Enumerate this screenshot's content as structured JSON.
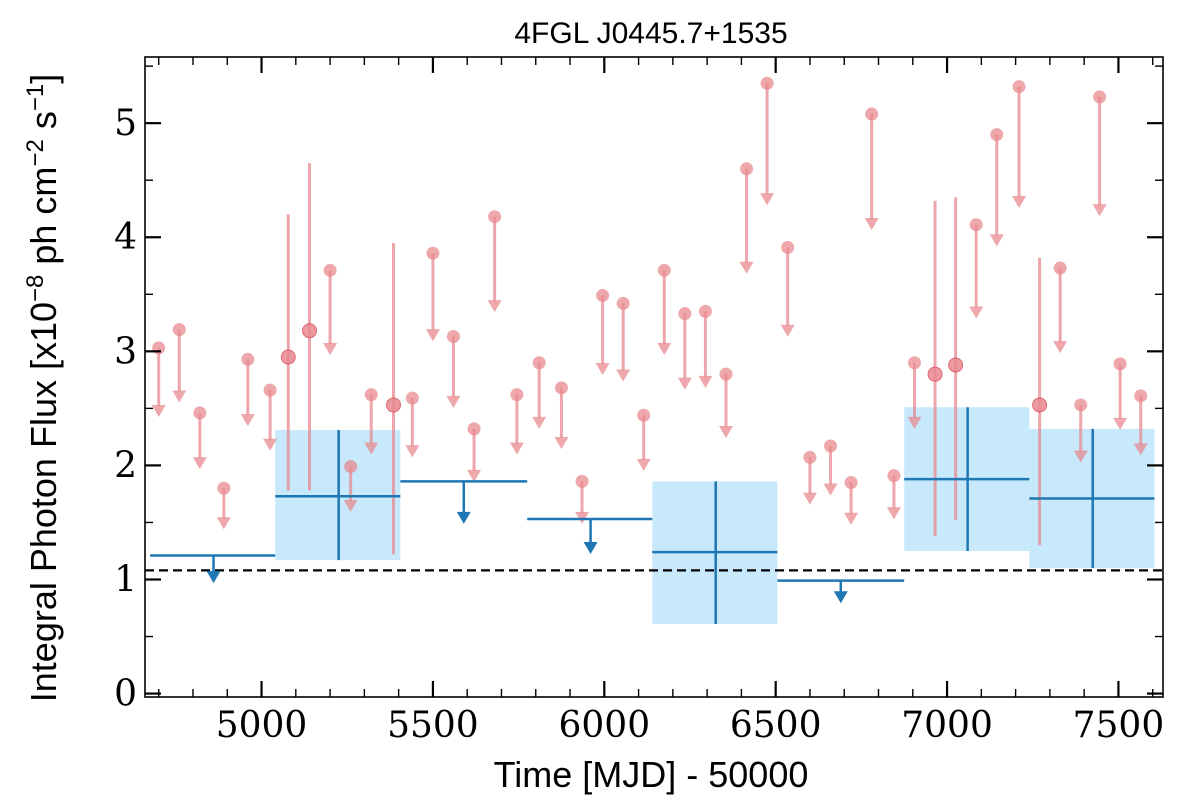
{
  "chart_data": {
    "type": "scatter",
    "title": "4FGL J0445.7+1535",
    "xlabel": "Time [MJD] - 50000",
    "ylabel": "Integral Photon Flux [x10^-8 ph cm^-2 s^-1]",
    "ylabel_parts": {
      "lead": "Integral Photon Flux [x10",
      "exp1": "−8",
      "mid": " ph cm",
      "exp2": "−2",
      "mid2": " s",
      "exp3": "−1",
      "tail": "]"
    },
    "xlim": [
      4660,
      7630
    ],
    "ylim": [
      -0.03,
      5.58
    ],
    "xticks": [
      5000,
      5500,
      6000,
      6500,
      7000,
      7500
    ],
    "yticks": [
      0,
      1,
      2,
      3,
      4,
      5
    ],
    "xtick_labels": [
      "5000",
      "5500",
      "6000",
      "6500",
      "7000",
      "7500"
    ],
    "ytick_labels": [
      "0",
      "1",
      "2",
      "3",
      "4",
      "5"
    ],
    "reference_line": {
      "y": 1.08,
      "style": "dashed"
    },
    "colors": {
      "fine_bins": "#e8898f",
      "coarse_bins": "#1f77b4",
      "coarse_band": "#c7e9fb"
    },
    "series": [
      {
        "detections": [
          {
            "x": 5078,
            "y": 2.95,
            "ylow": 1.78,
            "yhigh": 4.2
          },
          {
            "x": 5140,
            "y": 3.18,
            "ylow": 1.78,
            "yhigh": 4.65
          },
          {
            "x": 5385,
            "y": 2.53,
            "ylow": 1.22,
            "yhigh": 3.95
          },
          {
            "x": 6965,
            "y": 2.8,
            "ylow": 1.38,
            "yhigh": 4.32
          },
          {
            "x": 7025,
            "y": 2.88,
            "ylow": 1.52,
            "yhigh": 4.35
          },
          {
            "x": 7270,
            "y": 2.53,
            "ylow": 1.3,
            "yhigh": 3.82
          }
        ],
        "upper_limits": [
          {
            "x": 4700,
            "y": 3.03
          },
          {
            "x": 4760,
            "y": 3.19
          },
          {
            "x": 4820,
            "y": 2.46
          },
          {
            "x": 4890,
            "y": 1.8
          },
          {
            "x": 4960,
            "y": 2.93
          },
          {
            "x": 5025,
            "y": 2.66
          },
          {
            "x": 5200,
            "y": 3.71
          },
          {
            "x": 5260,
            "y": 1.99
          },
          {
            "x": 5320,
            "y": 2.62
          },
          {
            "x": 5440,
            "y": 2.59
          },
          {
            "x": 5500,
            "y": 3.86
          },
          {
            "x": 5560,
            "y": 3.13
          },
          {
            "x": 5620,
            "y": 2.32
          },
          {
            "x": 5680,
            "y": 4.18
          },
          {
            "x": 5745,
            "y": 2.62
          },
          {
            "x": 5810,
            "y": 2.9
          },
          {
            "x": 5875,
            "y": 2.68
          },
          {
            "x": 5935,
            "y": 1.86
          },
          {
            "x": 5995,
            "y": 3.49
          },
          {
            "x": 6055,
            "y": 3.42
          },
          {
            "x": 6115,
            "y": 2.44
          },
          {
            "x": 6175,
            "y": 3.71
          },
          {
            "x": 6235,
            "y": 3.33
          },
          {
            "x": 6295,
            "y": 3.35
          },
          {
            "x": 6355,
            "y": 2.8
          },
          {
            "x": 6415,
            "y": 4.6
          },
          {
            "x": 6475,
            "y": 5.35
          },
          {
            "x": 6535,
            "y": 3.91
          },
          {
            "x": 6600,
            "y": 2.07
          },
          {
            "x": 6660,
            "y": 2.17
          },
          {
            "x": 6720,
            "y": 1.85
          },
          {
            "x": 6780,
            "y": 5.08
          },
          {
            "x": 6845,
            "y": 1.91
          },
          {
            "x": 6905,
            "y": 2.9
          },
          {
            "x": 7085,
            "y": 4.11
          },
          {
            "x": 7145,
            "y": 4.9
          },
          {
            "x": 7210,
            "y": 5.32
          },
          {
            "x": 7330,
            "y": 3.73
          },
          {
            "x": 7390,
            "y": 2.53
          },
          {
            "x": 7445,
            "y": 5.23
          },
          {
            "x": 7505,
            "y": 2.89
          },
          {
            "x": 7565,
            "y": 2.61
          }
        ]
      },
      {
        "detections": [
          {
            "x0": 5040,
            "x1": 5405,
            "xc": 5225,
            "y": 1.73,
            "ylow": 1.17,
            "yhigh": 2.31
          },
          {
            "x0": 6140,
            "x1": 6505,
            "xc": 6325,
            "y": 1.24,
            "ylow": 0.61,
            "yhigh": 1.86
          },
          {
            "x0": 6875,
            "x1": 7240,
            "xc": 7060,
            "y": 1.88,
            "ylow": 1.25,
            "yhigh": 2.51
          },
          {
            "x0": 7240,
            "x1": 7605,
            "xc": 7425,
            "y": 1.71,
            "ylow": 1.1,
            "yhigh": 2.32
          }
        ],
        "upper_limits": [
          {
            "x0": 4675,
            "x1": 5040,
            "xc": 4860,
            "y": 1.21
          },
          {
            "x0": 5405,
            "x1": 5775,
            "xc": 5590,
            "y": 1.86
          },
          {
            "x0": 5775,
            "x1": 6140,
            "xc": 5960,
            "y": 1.53
          },
          {
            "x0": 6505,
            "x1": 6875,
            "xc": 6690,
            "y": 0.99
          }
        ]
      }
    ]
  }
}
